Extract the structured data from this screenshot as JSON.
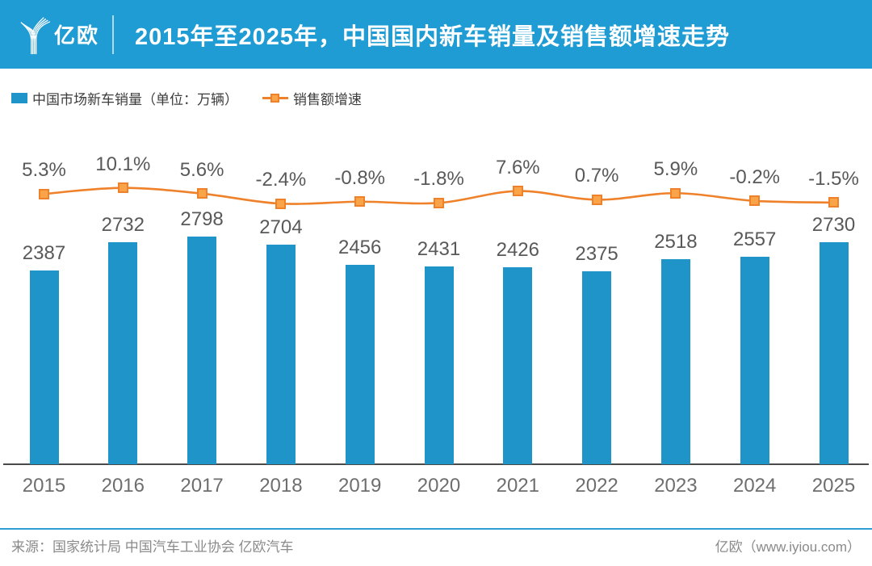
{
  "header": {
    "brand": "亿欧",
    "title": "2015年至2025年，中国国内新车销量及销售额增速走势"
  },
  "legend": {
    "bar_label": "中国市场新车销量（单位：万辆）",
    "line_label": "销售额增速"
  },
  "chart_data": {
    "type": "bar+line",
    "title": "2015年至2025年，中国国内新车销量及销售额增速走势",
    "categories": [
      "2015",
      "2016",
      "2017",
      "2018",
      "2019",
      "2020",
      "2021",
      "2022",
      "2023",
      "2024",
      "2025"
    ],
    "series": [
      {
        "name": "中国市场新车销量（单位：万辆）",
        "type": "bar",
        "unit": "万辆",
        "values": [
          2387,
          2732,
          2798,
          2704,
          2456,
          2431,
          2426,
          2375,
          2518,
          2557,
          2730
        ]
      },
      {
        "name": "销售额增速",
        "type": "line",
        "unit": "%",
        "values": [
          5.3,
          10.1,
          5.6,
          -2.4,
          -0.8,
          -1.8,
          7.6,
          0.7,
          5.9,
          -0.2,
          -1.5
        ],
        "labels": [
          "5.3%",
          "10.1%",
          "5.6%",
          "-2.4%",
          "-0.8%",
          "-1.8%",
          "7.6%",
          "0.7%",
          "5.9%",
          "-0.2%",
          "-1.5%"
        ]
      }
    ],
    "bar_ylim": [
      0,
      2860
    ],
    "grid": false,
    "legend_position": "top-left",
    "data_labels": true
  },
  "footer": {
    "source": "来源：国家统计局 中国汽车工业协会 亿欧汽车",
    "site": "亿欧（www.iyiou.com）"
  },
  "colors": {
    "header_bg": "#1F9CD3",
    "bar": "#1F94C9",
    "line": "#EE8129",
    "marker_fill": "#F9A449",
    "label": "#595959",
    "tick": "#6E6E6E",
    "axis": "#4A4A4A",
    "footer_divider": "#2E9FD4",
    "footer_text": "#8A8A8A"
  }
}
